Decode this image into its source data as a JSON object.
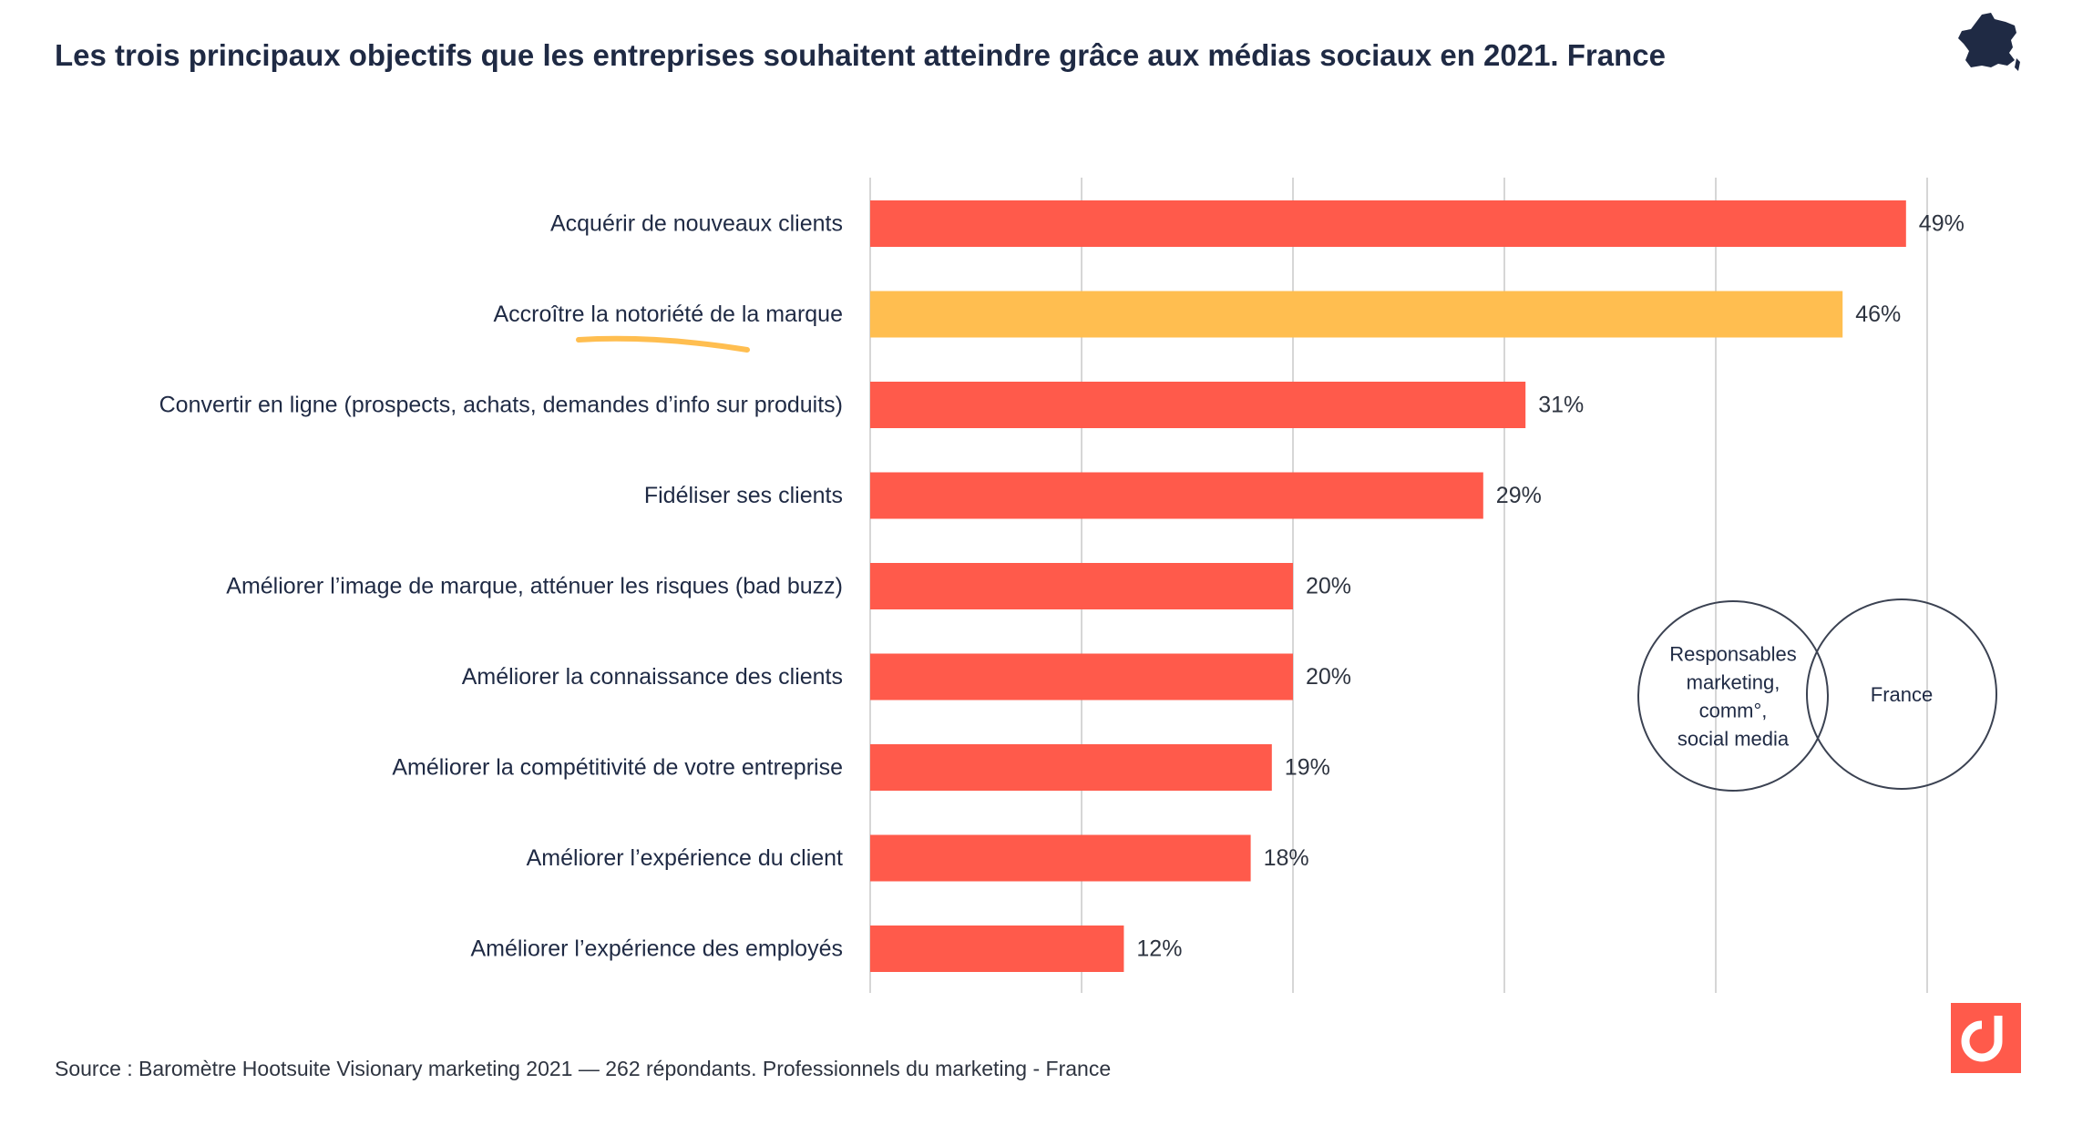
{
  "title": "Les trois principaux objectifs que les entreprises souhaitent atteindre grâce aux médias sociaux en 2021. France",
  "source": "Source : Baromètre Hootsuite Visionary marketing  2021 — 262 répondants. Professionnels du marketing  - France",
  "icons": {
    "map": "france-map-icon",
    "logo": "brand-logo-icon"
  },
  "colors": {
    "bar": "#ff5a4b",
    "highlight": "#ffbe50",
    "text": "#1f2a44",
    "grid": "#d6d6d6",
    "underline": "#ffbe50",
    "logo": "#ff5a4b"
  },
  "chart_data": {
    "type": "bar",
    "orientation": "horizontal",
    "categories": [
      "Acquérir de nouveaux clients",
      "Accroître la notoriété de la marque",
      "Convertir en ligne (prospects, achats, demandes d’info sur produits)",
      "Fidéliser ses clients",
      "Améliorer l’image de marque, atténuer les risques (bad buzz)",
      "Améliorer la connaissance des clients",
      "Améliorer la compétitivité de votre entreprise",
      "Améliorer l’expérience du client",
      "Améliorer l’expérience des employés"
    ],
    "values": [
      49,
      46,
      31,
      29,
      20,
      20,
      19,
      18,
      12
    ],
    "data_labels": [
      "49%",
      "46%",
      "31%",
      "29%",
      "20%",
      "20%",
      "19%",
      "18%",
      "12%"
    ],
    "highlight_index": 1,
    "xlim": [
      0,
      50
    ],
    "grid": true,
    "tick_labels_visible": false,
    "legend_circles": [
      "Responsables marketing, comm°, social media",
      "France"
    ],
    "legend_lines": [
      [
        "Responsables",
        "marketing,",
        "comm°,",
        "social media"
      ],
      [
        "France"
      ]
    ]
  }
}
